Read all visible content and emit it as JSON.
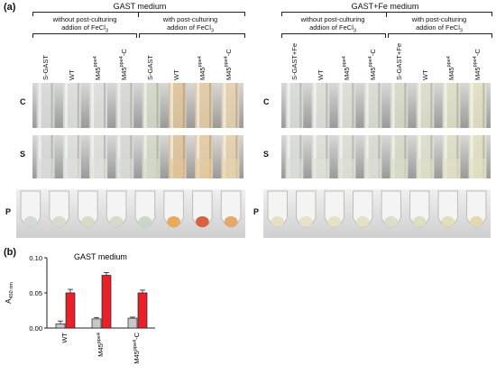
{
  "panel_a": {
    "letter": "(a)",
    "groups": [
      {
        "title": "GAST medium",
        "sub_left": {
          "line1": "without post-culturing",
          "line2_pre": "addion of FeCl",
          "line2_sub": "3"
        },
        "sub_right": {
          "line1": "with post-culturing",
          "line2_pre": "addion of FeCl",
          "line2_sub": "3"
        },
        "columns": [
          {
            "base": "S-GAST",
            "sup": "",
            "suffix": ""
          },
          {
            "base": "WT",
            "sup": "",
            "suffix": ""
          },
          {
            "base": "M45",
            "sup": "ppe4",
            "suffix": ""
          },
          {
            "base": "M45",
            "sup": "ppe4",
            "suffix": "-C"
          },
          {
            "base": "S-GAST",
            "sup": "",
            "suffix": ""
          },
          {
            "base": "WT",
            "sup": "",
            "suffix": ""
          },
          {
            "base": "M45",
            "sup": "ppe4",
            "suffix": ""
          },
          {
            "base": "M45",
            "sup": "ppe4",
            "suffix": "-C"
          }
        ]
      },
      {
        "title": "GAST+Fe medium",
        "sub_left": {
          "line1": "without post-culturing",
          "line2_pre": "addion of FeCl",
          "line2_sub": "3"
        },
        "sub_right": {
          "line1": "with post-culturing",
          "line2_pre": "addion of FeCl",
          "line2_sub": "3"
        },
        "columns": [
          {
            "base": "S-GAST+Fe",
            "sup": "",
            "suffix": ""
          },
          {
            "base": "WT",
            "sup": "",
            "suffix": ""
          },
          {
            "base": "M45",
            "sup": "ppe4",
            "suffix": ""
          },
          {
            "base": "M45",
            "sup": "ppe4",
            "suffix": "-C"
          },
          {
            "base": "S-GAST+Fe",
            "sup": "",
            "suffix": ""
          },
          {
            "base": "WT",
            "sup": "",
            "suffix": ""
          },
          {
            "base": "M45",
            "sup": "ppe4",
            "suffix": ""
          },
          {
            "base": "M45",
            "sup": "ppe4",
            "suffix": "-C"
          }
        ]
      }
    ],
    "rows": [
      "C",
      "S",
      "P"
    ],
    "tube_colors": {
      "left": [
        "#d9ddd8",
        "#dfe2dc",
        "#e0e2dc",
        "#dadcd6",
        "#d6dbc8",
        "#e2c49a",
        "#e6cba2",
        "#e8d3ae"
      ],
      "right": [
        "#dcdfd8",
        "#e0e2da",
        "#dfe1d6",
        "#dcdfd5",
        "#d9ddca",
        "#e0e0cc",
        "#e2e1c8",
        "#e4e2c4"
      ],
      "pellet_left": [
        "#cfd6cf",
        "#d3d9c7",
        "#d5d9c2",
        "#d2d7c6",
        "#c9d4c0",
        "#e8a24e",
        "#d8502e",
        "#e2a058"
      ],
      "pellet_right": [
        "#e4dcc0",
        "#e6e0c4",
        "#e4e0c2",
        "#e2dfc4",
        "#d9dcc6",
        "#dcdcbe",
        "#e0dcb6",
        "#e0d6a8"
      ]
    }
  },
  "panel_b": {
    "letter": "(b)",
    "chart_data": {
      "type": "bar",
      "title": "GAST medium",
      "ylabel_main": "A",
      "ylabel_sub": "450 nm",
      "categories": [
        {
          "base": "WT",
          "sup": "",
          "suffix": ""
        },
        {
          "base": "M45",
          "sup": "ppe4",
          "suffix": ""
        },
        {
          "base": "M45",
          "sup": "ppe4",
          "suffix": "-C"
        }
      ],
      "series": [
        {
          "color": "#c8c8c8",
          "values": [
            0.006,
            0.013,
            0.014
          ],
          "errors": [
            0.004,
            0.002,
            0.0015
          ]
        },
        {
          "color": "#e8202a",
          "values": [
            0.05,
            0.075,
            0.05
          ],
          "errors": [
            0.005,
            0.004,
            0.004
          ]
        }
      ],
      "ylim": [
        0,
        0.1
      ],
      "yticks": [
        "0.00",
        "0.05",
        "0.10"
      ]
    }
  }
}
